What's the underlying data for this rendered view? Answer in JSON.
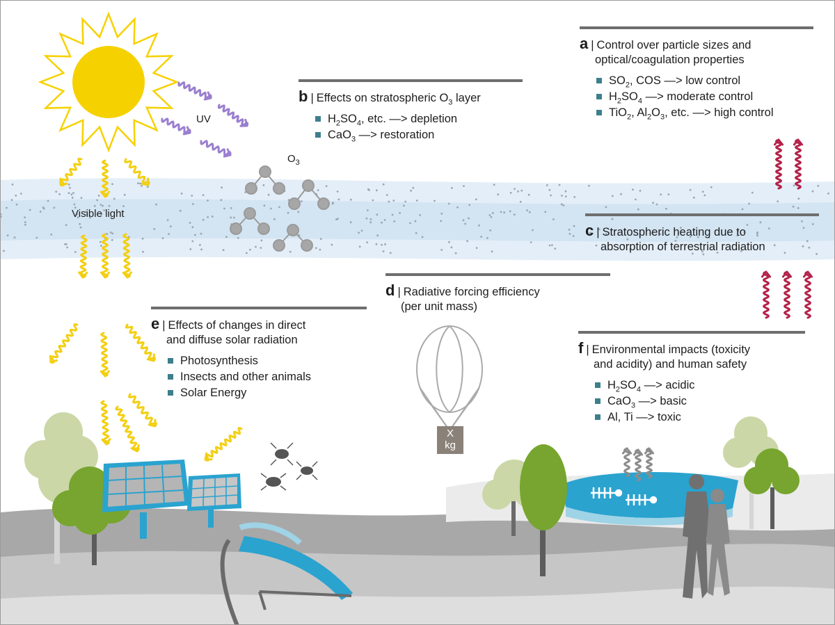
{
  "labels": {
    "uv": "UV",
    "o3": "O",
    "o3_sub": "3",
    "visible_light": "Visible light",
    "payload_x": "X",
    "payload_kg": "kg"
  },
  "panels": {
    "a": {
      "letter": "a",
      "sep": "|",
      "title": "Control over particle sizes and",
      "title2": "optical/coagulation properties",
      "items": [
        {
          "p1": "SO",
          "s1": "2",
          "p2": ", COS —> low control"
        },
        {
          "p1": "H",
          "s1": "2",
          "p2": "SO",
          "s2": "4",
          "p3": " —> moderate control"
        },
        {
          "p1": "TiO",
          "s1": "2",
          "p2": ", Al",
          "s2": "2",
          "p3": "O",
          "s3": "3",
          "p4": ", etc. —> high control"
        }
      ]
    },
    "b": {
      "letter": "b",
      "sep": "|",
      "title_p1": "Effects on stratospheric O",
      "title_s1": "3",
      "title_p2": " layer",
      "items": [
        {
          "p1": "H",
          "s1": "2",
          "p2": "SO",
          "s2": "4",
          "p3": ", etc. —> depletion"
        },
        {
          "p1": "CaO",
          "s1": "3",
          "p2": " —> restoration"
        }
      ]
    },
    "c": {
      "letter": "c",
      "sep": "|",
      "title": "Stratospheric heating due to",
      "title2": "absorption of terrestrial radiation"
    },
    "d": {
      "letter": "d",
      "sep": "|",
      "title": "Radiative forcing efficiency",
      "title2": "(per unit mass)"
    },
    "e": {
      "letter": "e",
      "sep": "|",
      "title": "Effects of changes in direct",
      "title2": "and diffuse solar radiation",
      "items": [
        "Photosynthesis",
        "Insects and other animals",
        "Solar Energy"
      ]
    },
    "f": {
      "letter": "f",
      "sep": "|",
      "title": "Environmental impacts (toxicity",
      "title2": "and acidity) and human safety",
      "items": [
        {
          "p1": "H",
          "s1": "2",
          "p2": "SO",
          "s2": "4",
          "p3": " —> acidic"
        },
        {
          "p1": "CaO",
          "s1": "3",
          "p2": " —> basic"
        },
        {
          "p1": "Al, Ti —> toxic"
        }
      ]
    }
  },
  "colors": {
    "sun": "#f6d100",
    "uv_wave": "#9a7fcf",
    "visible_wave": "#f3cf12",
    "ir_wave": "#b3234a",
    "stratosphere": "#deebf6",
    "bullet": "#3d7f8c",
    "rule": "#6e6e6e",
    "tree_dark": "#77a52f",
    "tree_light": "#cbd7a7",
    "water": "#2aa3cf",
    "ground_dark": "#9c9c9c",
    "ground_light": "#dcdcdc"
  }
}
